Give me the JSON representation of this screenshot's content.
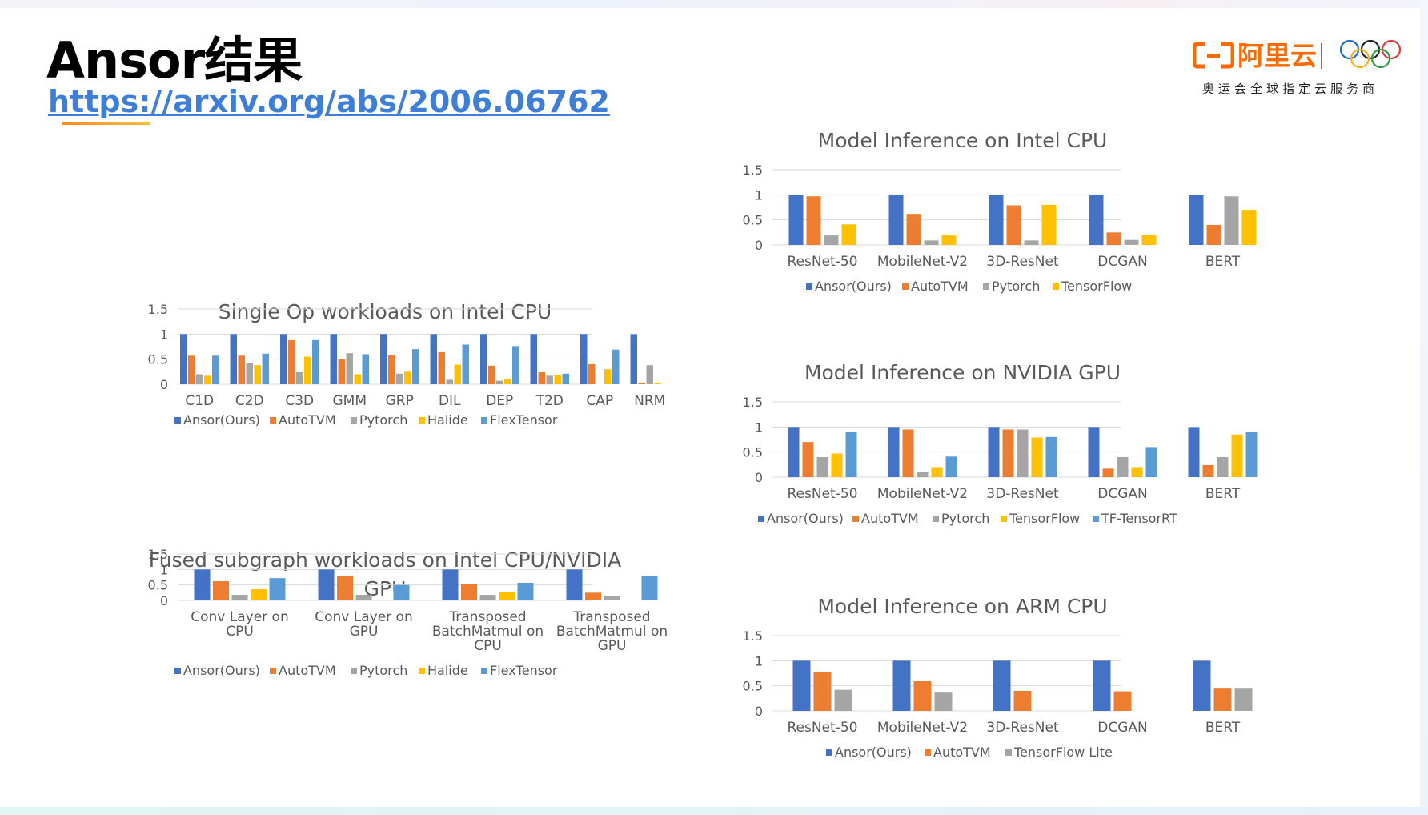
{
  "slide": {
    "title": "Ansor结果",
    "link": "https://arxiv.org/abs/2006.06762",
    "brand_name": "阿里云",
    "brand_tagline": "奥运会全球指定云服务商"
  },
  "colors": {
    "Ansor(Ours)": "#4472c4",
    "AutoTVM": "#ed7d31",
    "Pytorch": "#a5a5a5",
    "Halide": "#ffc000",
    "FlexTensor": "#5b9bd5",
    "TensorFlow": "#ffc000",
    "TF-TensorRT": "#5b9bd5",
    "TensorFlow Lite": "#a5a5a5",
    "brand": "#ff6a00",
    "link": "#3d7fd8"
  },
  "chart_data": [
    {
      "id": "single-op",
      "type": "bar",
      "title": "Single Op workloads on Intel CPU",
      "categories": [
        "C1D",
        "C2D",
        "C3D",
        "GMM",
        "GRP",
        "DIL",
        "DEP",
        "T2D",
        "CAP",
        "NRM"
      ],
      "yticks": [
        "1.5",
        "1",
        "0.5",
        "0"
      ],
      "ylim": [
        0,
        1.5
      ],
      "grid": true,
      "legend_position": "bottom",
      "series": [
        {
          "name": "Ansor(Ours)",
          "values": [
            1,
            1,
            1,
            1,
            1,
            1,
            1,
            1,
            1,
            1
          ]
        },
        {
          "name": "AutoTVM",
          "values": [
            0.57,
            0.57,
            0.88,
            0.5,
            0.58,
            0.64,
            0.37,
            0.24,
            0.4,
            0.03
          ]
        },
        {
          "name": "Pytorch",
          "values": [
            0.2,
            0.42,
            0.24,
            0.62,
            0.21,
            0.09,
            0.07,
            0.17,
            0,
            0.38
          ]
        },
        {
          "name": "Halide",
          "values": [
            0.17,
            0.38,
            0.55,
            0.2,
            0.25,
            0.39,
            0.1,
            0.18,
            0.3,
            0.02
          ]
        },
        {
          "name": "FlexTensor",
          "values": [
            0.57,
            0.61,
            0.88,
            0.6,
            0.7,
            0.79,
            0.76,
            0.21,
            0.69,
            0
          ]
        }
      ]
    },
    {
      "id": "fused-subgraph",
      "type": "bar",
      "title": "Fused subgraph workloads on Intel CPU/NVIDIA GPU",
      "categories": [
        "Conv Layer on CPU",
        "Conv Layer on GPU",
        "Transposed BatchMatmul on CPU",
        "Transposed BatchMatmul on GPU"
      ],
      "yticks": [
        "1.5",
        "1",
        "0.5",
        "0"
      ],
      "ylim": [
        0,
        1.5
      ],
      "grid": true,
      "legend_position": "bottom",
      "series": [
        {
          "name": "Ansor(Ours)",
          "values": [
            1,
            1,
            1,
            1
          ]
        },
        {
          "name": "AutoTVM",
          "values": [
            0.62,
            0.8,
            0.53,
            0.25
          ]
        },
        {
          "name": "Pytorch",
          "values": [
            0.18,
            0.18,
            0.18,
            0.14
          ]
        },
        {
          "name": "Halide",
          "values": [
            0.36,
            0,
            0.28,
            0
          ]
        },
        {
          "name": "FlexTensor",
          "values": [
            0.72,
            0.5,
            0.57,
            0.8
          ]
        }
      ]
    },
    {
      "id": "intel-cpu",
      "type": "bar",
      "title": "Model Inference on Intel CPU",
      "categories": [
        "ResNet-50",
        "MobileNet-V2",
        "3D-ResNet",
        "DCGAN",
        "BERT"
      ],
      "yticks": [
        "1.5",
        "1",
        "0.5",
        "0"
      ],
      "ylim": [
        0,
        1.5
      ],
      "grid": true,
      "legend_position": "bottom",
      "series": [
        {
          "name": "Ansor(Ours)",
          "values": [
            1,
            1,
            1,
            1,
            1
          ]
        },
        {
          "name": "AutoTVM",
          "values": [
            0.97,
            0.62,
            0.79,
            0.25,
            0.4
          ]
        },
        {
          "name": "Pytorch",
          "values": [
            0.19,
            0.09,
            0.09,
            0.1,
            0.97
          ]
        },
        {
          "name": "TensorFlow",
          "values": [
            0.41,
            0.19,
            0.8,
            0.2,
            0.7
          ]
        }
      ]
    },
    {
      "id": "nvidia-gpu",
      "type": "bar",
      "title": "Model Inference on NVIDIA GPU",
      "categories": [
        "ResNet-50",
        "MobileNet-V2",
        "3D-ResNet",
        "DCGAN",
        "BERT"
      ],
      "yticks": [
        "1.5",
        "1",
        "0.5",
        "0"
      ],
      "ylim": [
        0,
        1.5
      ],
      "grid": true,
      "legend_position": "bottom",
      "series": [
        {
          "name": "Ansor(Ours)",
          "values": [
            1,
            1,
            1,
            1,
            1
          ]
        },
        {
          "name": "AutoTVM",
          "values": [
            0.7,
            0.95,
            0.95,
            0.17,
            0.24
          ]
        },
        {
          "name": "Pytorch",
          "values": [
            0.4,
            0.1,
            0.95,
            0.4,
            0.4
          ]
        },
        {
          "name": "TensorFlow",
          "values": [
            0.47,
            0.2,
            0.79,
            0.2,
            0.85
          ]
        },
        {
          "name": "TF-TensorRT",
          "values": [
            0.9,
            0.41,
            0.8,
            0.6,
            0.9
          ]
        }
      ]
    },
    {
      "id": "arm-cpu",
      "type": "bar",
      "title": "Model Inference on ARM CPU",
      "categories": [
        "ResNet-50",
        "MobileNet-V2",
        "3D-ResNet",
        "DCGAN",
        "BERT"
      ],
      "yticks": [
        "1.5",
        "1",
        "0.5",
        "0"
      ],
      "ylim": [
        0,
        1.5
      ],
      "grid": true,
      "legend_position": "bottom",
      "series": [
        {
          "name": "Ansor(Ours)",
          "values": [
            1,
            1,
            1,
            1,
            1
          ]
        },
        {
          "name": "AutoTVM",
          "values": [
            0.78,
            0.59,
            0.4,
            0.39,
            0.46
          ]
        },
        {
          "name": "TensorFlow Lite",
          "values": [
            0.42,
            0.38,
            0,
            0,
            0.46
          ]
        }
      ]
    }
  ]
}
